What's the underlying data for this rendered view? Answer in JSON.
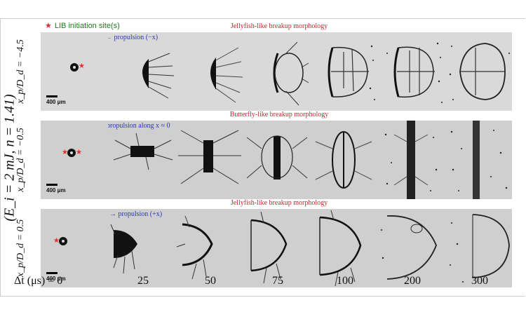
{
  "side_label": "(E_i = 2 mJ, n = 1.41)",
  "legend": {
    "star": "★",
    "text": "LIB initiation site(s)"
  },
  "rows": [
    {
      "label": "x_p/D_d = −4.5",
      "title": "Jellyfish-like breakup morphology",
      "propulsion": "←  propulsion (−x)"
    },
    {
      "label": "x_p/D_d = −0.5",
      "title": "Butterfly-like breakup morphology",
      "propulsion": "propulsion along x ≈ 0"
    },
    {
      "label": "x_p/D_d = 0.5",
      "title": "Jellyfish-like breakup morphology",
      "propulsion": "→  propulsion (+x)"
    }
  ],
  "scale_bar": "400 μm",
  "time_axis": {
    "label": "Δt (μs) = 0",
    "values": [
      "25",
      "50",
      "75",
      "100",
      "200",
      "300"
    ]
  }
}
